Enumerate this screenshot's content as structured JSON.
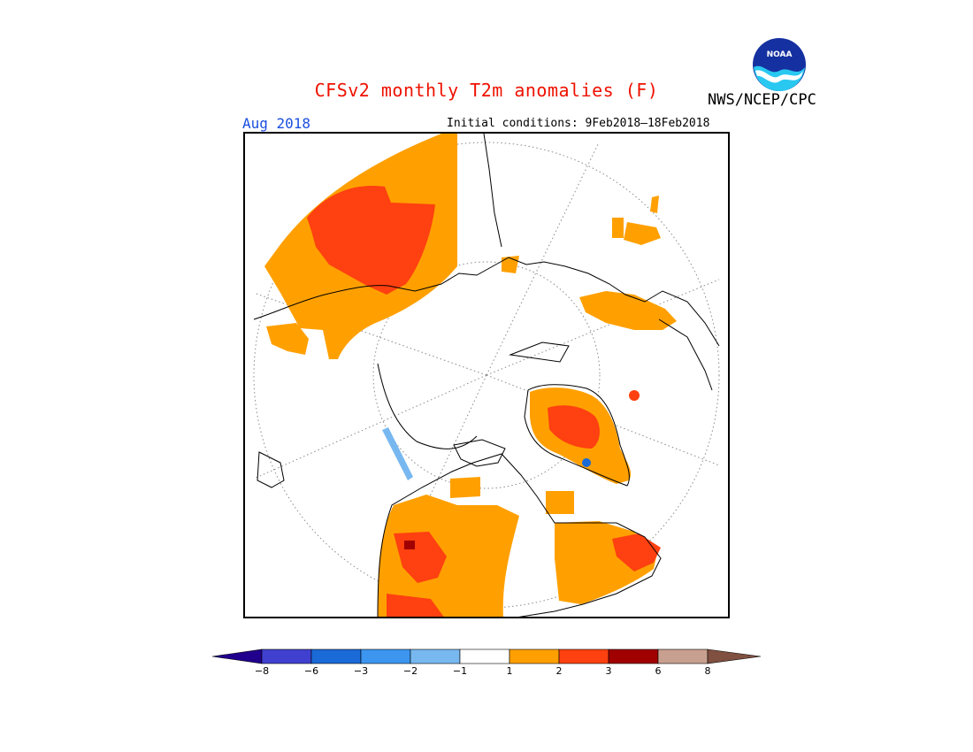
{
  "header": {
    "title": "CFSv2 monthly T2m anomalies (F)",
    "agency": "NWS/NCEP/CPC",
    "valid_month": "Aug 2018",
    "initial_conditions": "Initial conditions: 9Feb2018–18Feb2018",
    "logo_text": "NOAA"
  },
  "map": {
    "projection": "north-polar-stereographic",
    "grid": true
  },
  "legend": {
    "ticks": [
      "−8",
      "−6",
      "−3",
      "−2",
      "−1",
      "1",
      "2",
      "3",
      "6",
      "8"
    ],
    "colors": [
      "#20008c",
      "#4040d0",
      "#1a6ad8",
      "#3c96f0",
      "#78b8f0",
      "#ffffff",
      "#ffa000",
      "#ff4010",
      "#a00000",
      "#c8a090",
      "#805040"
    ]
  },
  "colors": {
    "title": "#ee1100",
    "valid_month": "#1a4fe0",
    "anomaly_1_2": "#ffa000",
    "anomaly_2_3": "#ff4010",
    "anomaly_3_6": "#a00000",
    "anomaly_neg_1_2": "#78b8f0",
    "anomaly_neg_2_3": "#3c96f0",
    "anomaly_neg_3_6": "#1a6ad8"
  }
}
